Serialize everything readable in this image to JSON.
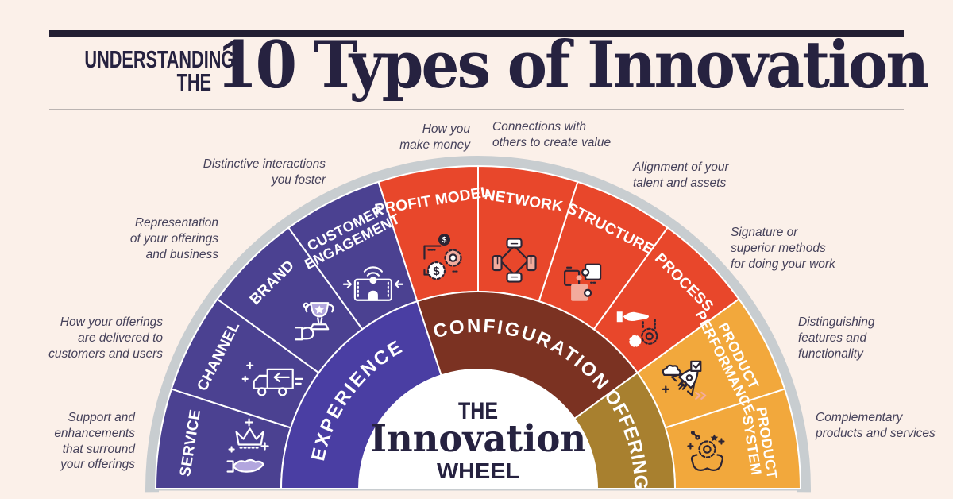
{
  "header": {
    "kicker_line1": "UNDERSTANDING",
    "kicker_line2": "THE",
    "title": "10 Types of Innovation"
  },
  "center": {
    "line1": "THE",
    "line2": "Innovation",
    "line3": "WHEEL"
  },
  "wheel": {
    "outer_segments": [
      {
        "label": "SERVICE",
        "lines": [
          "SERVICE"
        ],
        "color": "#4B4191",
        "icon": "crown-hand-icon",
        "annotation": "Support and\nenhancements\nthat surround\nyour offerings"
      },
      {
        "label": "CHANNEL",
        "lines": [
          "CHANNEL"
        ],
        "color": "#4B4191",
        "icon": "delivery-truck-icon",
        "annotation": "How your offerings\nare delivered to\ncustomers and users"
      },
      {
        "label": "BRAND",
        "lines": [
          "BRAND"
        ],
        "color": "#4B4191",
        "icon": "trophy-hand-icon",
        "annotation": "Representation\nof your offerings\nand business"
      },
      {
        "label": "CUSTOMER ENGAGEMENT",
        "lines": [
          "CUSTOMER",
          "ENGAGEMENT"
        ],
        "color": "#4B4191",
        "icon": "person-phone-icon",
        "annotation": "Distinctive interactions\nyou foster"
      },
      {
        "label": "PROFIT MODEL",
        "lines": [
          "PROFIT MODEL"
        ],
        "color": "#E8472B",
        "icon": "dollar-gears-icon",
        "annotation": "How you\nmake money"
      },
      {
        "label": "NETWORK",
        "lines": [
          "NETWORK"
        ],
        "color": "#E8472B",
        "icon": "joined-hands-icon",
        "annotation": "Connections with\nothers to create value"
      },
      {
        "label": "STRUCTURE",
        "lines": [
          "STRUCTURE"
        ],
        "color": "#E8472B",
        "icon": "puzzle-pieces-icon",
        "annotation": "Alignment of your\ntalent and assets"
      },
      {
        "label": "PROCESS",
        "lines": [
          "PROCESS"
        ],
        "color": "#E8472B",
        "icon": "hand-gears-icon",
        "annotation": "Signature or\nsuperior methods\nfor doing your work"
      },
      {
        "label": "PRODUCT PERFORMANCE",
        "lines": [
          "PRODUCT",
          "PERFORMANCE"
        ],
        "color": "#F2A83C",
        "icon": "rocket-icon",
        "annotation": "Distinguishing\nfeatures and\nfunctionality"
      },
      {
        "label": "PRODUCT SYSTEM",
        "lines": [
          "PRODUCT",
          "SYSTEM"
        ],
        "color": "#F2A83C",
        "icon": "hands-gear-icon",
        "annotation": "Complementary\nproducts and services"
      }
    ],
    "inner_segments": [
      {
        "label": "EXPERIENCE",
        "color": "#4A3EA3",
        "span_segments": 4
      },
      {
        "label": "CONFIGURATION",
        "color": "#7B3222",
        "span_segments": 4
      },
      {
        "label": "OFFERING",
        "color": "#A8802F",
        "span_segments": 2
      }
    ]
  },
  "colors": {
    "background": "#FBF0E9",
    "ink": "#262240",
    "rim": "#C8CDD0",
    "separator": "#FFFFFF",
    "annotation_text": "#45415A",
    "icon_lavender": "#B2A6DE",
    "icon_pink": "#F3AB9C",
    "icon_dark": "#2C2433",
    "icon_white": "#FFFFFF"
  }
}
